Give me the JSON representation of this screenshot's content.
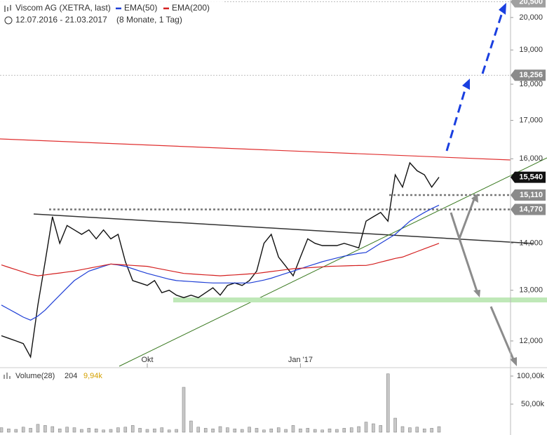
{
  "chart_data": {
    "type": "line",
    "title": "Viscom AG (XETRA, last)",
    "subtitle": "12.07.2016 - 21.03.2017",
    "period": "(8 Monate, 1 Tag)",
    "log_scale": true,
    "categories": [
      null,
      null,
      null,
      null,
      null,
      null,
      null,
      null,
      null,
      null,
      null,
      null,
      null,
      null,
      null,
      null,
      null,
      null,
      null,
      null,
      "Okt",
      null,
      null,
      null,
      null,
      null,
      null,
      null,
      null,
      null,
      null,
      null,
      null,
      null,
      null,
      null,
      null,
      null,
      null,
      null,
      null,
      "Jan '17",
      null,
      null,
      null,
      null,
      null,
      null,
      null,
      null,
      null,
      null,
      null,
      null,
      null,
      null,
      null,
      null,
      null,
      null,
      null
    ],
    "series": [
      {
        "color": "#111111",
        "values": [
          12100,
          12050,
          12000,
          11950,
          11700,
          12700,
          13600,
          14600,
          14000,
          14400,
          14300,
          14200,
          14300,
          14100,
          14300,
          14100,
          14200,
          13600,
          13200,
          13150,
          13100,
          13200,
          12950,
          13000,
          12900,
          12850,
          12900,
          12850,
          12950,
          13050,
          12900,
          13100,
          13150,
          13100,
          13200,
          13400,
          14000,
          14200,
          13700,
          13500,
          13300,
          13700,
          14100,
          14000,
          13950,
          13950,
          13950,
          14000,
          13950,
          13900,
          14500,
          14600,
          14700,
          14500,
          15600,
          15300,
          15900,
          15700,
          15600,
          15300,
          15540
        ]
      },
      {
        "name": "EMA(50)",
        "color": "#1f3fd6",
        "values": [
          12700,
          12620,
          12540,
          12460,
          12400,
          12480,
          12600,
          12750,
          12900,
          13050,
          13200,
          13300,
          13400,
          13450,
          13500,
          13550,
          13530,
          13500,
          13450,
          13400,
          13350,
          13310,
          13270,
          13230,
          13200,
          13190,
          13180,
          13170,
          13160,
          13150,
          13150,
          13150,
          13150,
          13150,
          13150,
          13180,
          13210,
          13250,
          13300,
          13350,
          13400,
          13450,
          13500,
          13550,
          13600,
          13640,
          13680,
          13720,
          13750,
          13780,
          13800,
          13900,
          14000,
          14100,
          14200,
          14350,
          14500,
          14600,
          14700,
          14790,
          14870
        ]
      },
      {
        "name": "EMA(200)",
        "color": "#d42020",
        "values": [
          13530,
          13480,
          13430,
          13380,
          13330,
          13300,
          13320,
          13340,
          13360,
          13380,
          13400,
          13430,
          13460,
          13490,
          13520,
          13550,
          13540,
          13530,
          13520,
          13510,
          13500,
          13470,
          13440,
          13410,
          13380,
          13350,
          13340,
          13330,
          13320,
          13310,
          13300,
          13310,
          13320,
          13330,
          13340,
          13350,
          13370,
          13390,
          13410,
          13430,
          13450,
          13460,
          13470,
          13480,
          13490,
          13500,
          13505,
          13510,
          13515,
          13518,
          13520,
          13550,
          13590,
          13630,
          13670,
          13700,
          13760,
          13820,
          13880,
          13940,
          14000
        ]
      }
    ],
    "ylim": [
      11530,
      20560
    ],
    "yticks": [
      {
        "value": 12000,
        "label": "12,000"
      },
      {
        "value": 13000,
        "label": "13,000"
      },
      {
        "value": 14000,
        "label": "14,000"
      },
      {
        "value": 16000,
        "label": "16,000"
      },
      {
        "value": 17000,
        "label": "17,000"
      },
      {
        "value": 18000,
        "label": "18,000"
      },
      {
        "value": 19000,
        "label": "19,000"
      },
      {
        "value": 20000,
        "label": "20,000"
      }
    ],
    "price_labels": [
      {
        "value": 20500,
        "label": "20,500",
        "color": "#a0a0a0"
      },
      {
        "value": 18256,
        "label": "18,256",
        "color": "#8a8a8a"
      },
      {
        "value": 15540,
        "label": "15,540",
        "color": "#111111"
      },
      {
        "value": 15110,
        "label": "15,110",
        "color": "#8a8a8a"
      },
      {
        "value": 14770,
        "label": "14,770",
        "color": "#8a8a8a"
      }
    ],
    "volume": {
      "label": "Volume(28)",
      "average": 204,
      "last": 9940,
      "last_label": "9,94k",
      "color": "#c8c8c8",
      "values": [
        8000,
        6000,
        5000,
        9000,
        7000,
        14000,
        12000,
        10000,
        6000,
        9000,
        8000,
        5000,
        7000,
        6000,
        4000,
        5000,
        8000,
        9000,
        12000,
        7000,
        5000,
        6000,
        8000,
        4000,
        5000,
        80000,
        20000,
        9000,
        7000,
        6000,
        10000,
        8000,
        6000,
        5000,
        9000,
        7000,
        4000,
        6000,
        8000,
        5000,
        12000,
        6000,
        7000,
        5000,
        4000,
        6000,
        5000,
        7000,
        8000,
        10000,
        18000,
        15000,
        12000,
        104000,
        25000,
        10000,
        8000,
        9000,
        6000,
        7000,
        9940
      ],
      "ylim": [
        0,
        112500
      ],
      "yticks": [
        {
          "value": 100000,
          "label": "100,00k"
        },
        {
          "value": 50000,
          "label": "50,00k"
        }
      ]
    }
  }
}
